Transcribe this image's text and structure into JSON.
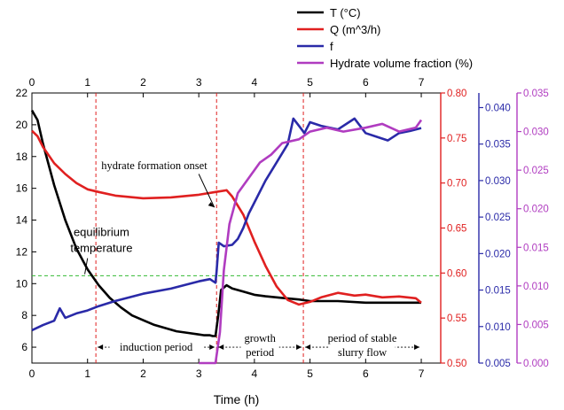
{
  "chart_data": {
    "type": "line",
    "xlabel": "Time (h)",
    "xlim": [
      0,
      7.35
    ],
    "x_ticks": [
      0,
      1,
      2,
      3,
      4,
      5,
      6,
      7
    ],
    "axes": {
      "T": {
        "ylim": [
          5,
          22
        ],
        "ticks": [
          6,
          8,
          10,
          12,
          14,
          16,
          18,
          20,
          22
        ],
        "color": "#000000"
      },
      "Q": {
        "ylim": [
          0.5,
          0.8
        ],
        "ticks": [
          "0.50",
          "0.55",
          "0.60",
          "0.65",
          "0.70",
          "0.75",
          "0.80"
        ],
        "color": "#e02020"
      },
      "f": {
        "ylim": [
          0.005,
          0.042
        ],
        "ticks": [
          "0.005",
          "0.010",
          "0.015",
          "0.020",
          "0.025",
          "0.030",
          "0.035",
          "0.040"
        ],
        "color": "#2a2aa8"
      },
      "H": {
        "ylim": [
          0.0,
          0.035
        ],
        "ticks": [
          "0.000",
          "0.005",
          "0.010",
          "0.015",
          "0.020",
          "0.025",
          "0.030",
          "0.035"
        ],
        "color": "#b03cc0"
      }
    },
    "legend": {
      "placement": "top-center",
      "entries": [
        {
          "label": "T (°C)",
          "color": "#000000"
        },
        {
          "label": "Q (m^3/h)",
          "color": "#e02020"
        },
        {
          "label": "f",
          "color": "#2a2aa8"
        },
        {
          "label": "Hydrate volume fraction (%)",
          "color": "#b03cc0"
        }
      ]
    },
    "series": [
      {
        "name": "T (°C)",
        "axis": "T",
        "x": [
          0,
          0.1,
          0.2,
          0.4,
          0.6,
          0.8,
          1.0,
          1.2,
          1.4,
          1.6,
          1.8,
          2.0,
          2.2,
          2.4,
          2.6,
          2.8,
          3.0,
          3.1,
          3.2,
          3.25,
          3.3,
          3.35,
          3.4,
          3.5,
          3.6,
          3.8,
          4.0,
          4.2,
          4.5,
          4.8,
          5.0,
          5.5,
          6.0,
          6.5,
          7.0
        ],
        "values": [
          20.9,
          20.3,
          18.8,
          16.2,
          14.0,
          12.2,
          10.9,
          9.9,
          9.1,
          8.5,
          8.0,
          7.7,
          7.4,
          7.2,
          7.0,
          6.9,
          6.8,
          6.75,
          6.75,
          6.7,
          6.7,
          8.0,
          9.6,
          9.9,
          9.7,
          9.5,
          9.3,
          9.2,
          9.1,
          9.0,
          8.9,
          8.9,
          8.8,
          8.8,
          8.8
        ]
      },
      {
        "name": "Q (m^3/h)",
        "axis": "Q",
        "x": [
          0,
          0.1,
          0.2,
          0.4,
          0.6,
          0.8,
          1.0,
          1.2,
          1.5,
          2.0,
          2.5,
          3.0,
          3.3,
          3.5,
          3.6,
          3.8,
          4.0,
          4.2,
          4.4,
          4.6,
          4.8,
          5.0,
          5.2,
          5.5,
          5.8,
          6.0,
          6.3,
          6.6,
          6.9,
          7.0
        ],
        "values": [
          0.758,
          0.752,
          0.74,
          0.722,
          0.71,
          0.7,
          0.693,
          0.69,
          0.686,
          0.683,
          0.684,
          0.687,
          0.69,
          0.692,
          0.685,
          0.665,
          0.635,
          0.608,
          0.585,
          0.57,
          0.565,
          0.568,
          0.573,
          0.578,
          0.575,
          0.576,
          0.573,
          0.574,
          0.572,
          0.567
        ]
      },
      {
        "name": "f",
        "axis": "f",
        "x": [
          0,
          0.2,
          0.4,
          0.5,
          0.6,
          0.8,
          1.0,
          1.2,
          1.5,
          2.0,
          2.5,
          3.0,
          3.2,
          3.3,
          3.32,
          3.36,
          3.45,
          3.6,
          3.7,
          3.8,
          3.9,
          4.0,
          4.2,
          4.4,
          4.6,
          4.7,
          4.8,
          4.9,
          5.0,
          5.2,
          5.5,
          5.8,
          6.0,
          6.2,
          6.4,
          6.6,
          6.8,
          7.0
        ],
        "values": [
          0.0095,
          0.0102,
          0.0108,
          0.0125,
          0.0112,
          0.0118,
          0.0122,
          0.0128,
          0.0135,
          0.0145,
          0.0152,
          0.0162,
          0.0165,
          0.016,
          0.0175,
          0.0215,
          0.021,
          0.0212,
          0.022,
          0.0235,
          0.0255,
          0.027,
          0.03,
          0.0325,
          0.035,
          0.0385,
          0.0375,
          0.0365,
          0.038,
          0.0375,
          0.037,
          0.0385,
          0.0365,
          0.036,
          0.0355,
          0.0365,
          0.0368,
          0.0372
        ]
      },
      {
        "name": "Hydrate volume fraction (%)",
        "axis": "H",
        "x": [
          3.0,
          3.2,
          3.3,
          3.38,
          3.45,
          3.55,
          3.7,
          3.9,
          4.1,
          4.3,
          4.5,
          4.8,
          5.0,
          5.3,
          5.6,
          6.0,
          6.3,
          6.6,
          6.9,
          7.0
        ],
        "values": [
          0.0,
          0.0,
          0.0,
          0.004,
          0.012,
          0.018,
          0.022,
          0.024,
          0.026,
          0.027,
          0.0285,
          0.029,
          0.03,
          0.0305,
          0.03,
          0.0305,
          0.031,
          0.03,
          0.0305,
          0.0315
        ]
      }
    ],
    "equilibrium_line": {
      "axis": "T",
      "value": 10.5,
      "color": "#33bb33"
    },
    "phase_boundaries": {
      "x": [
        1.15,
        3.32,
        4.88
      ],
      "color": "#e02020"
    },
    "annotations": [
      {
        "text": "hydrate formation onset",
        "x": 2.2,
        "y": 17.2
      },
      {
        "text": "equilibrium",
        "x": 1.25,
        "y": 13.0
      },
      {
        "text": "temperature",
        "x": 1.25,
        "y": 12.0
      }
    ],
    "phases": [
      {
        "lines": [
          "induction period"
        ],
        "x_from": 1.15,
        "x_to": 3.32
      },
      {
        "lines": [
          "growth",
          "period"
        ],
        "x_from": 3.32,
        "x_to": 4.88
      },
      {
        "lines": [
          "period of stable",
          "slurry flow"
        ],
        "x_from": 4.88,
        "x_to": 7.0
      }
    ]
  }
}
